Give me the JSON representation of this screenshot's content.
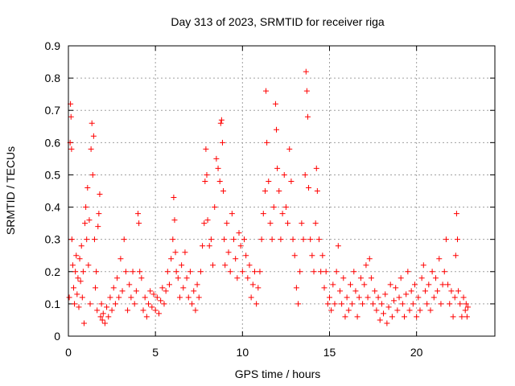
{
  "chart_data": {
    "type": "scatter",
    "title": "Day 313 of 2023, SRMTID for receiver riga",
    "xlabel": "GPS time / hours",
    "ylabel": "SRMTID / TECUs",
    "xlim": [
      0,
      24.5
    ],
    "ylim": [
      0,
      0.9
    ],
    "xticks": [
      0,
      5,
      10,
      15,
      20
    ],
    "xtick_labels": [
      "0",
      "5",
      "10",
      "15",
      "20"
    ],
    "yticks": [
      0,
      0.1,
      0.2,
      0.3,
      0.4,
      0.5,
      0.6,
      0.7,
      0.8,
      0.9
    ],
    "ytick_labels": [
      "0",
      "0.1",
      "0.2",
      "0.3",
      "0.4",
      "0.5",
      "0.6",
      "0.7",
      "0.8",
      "0.9"
    ],
    "grid": true,
    "marker": "+",
    "color": "#ff0000",
    "series": [
      {
        "name": "SRMTID",
        "points": [
          [
            0.05,
            0.12
          ],
          [
            0.1,
            0.6
          ],
          [
            0.12,
            0.72
          ],
          [
            0.15,
            0.68
          ],
          [
            0.18,
            0.58
          ],
          [
            0.2,
            0.3
          ],
          [
            0.25,
            0.22
          ],
          [
            0.3,
            0.15
          ],
          [
            0.35,
            0.1
          ],
          [
            0.4,
            0.2
          ],
          [
            0.45,
            0.25
          ],
          [
            0.5,
            0.13
          ],
          [
            0.55,
            0.18
          ],
          [
            0.6,
            0.09
          ],
          [
            0.65,
            0.24
          ],
          [
            0.7,
            0.17
          ],
          [
            0.75,
            0.28
          ],
          [
            0.8,
            0.12
          ],
          [
            0.85,
            0.2
          ],
          [
            0.9,
            0.04
          ],
          [
            0.95,
            0.35
          ],
          [
            1.0,
            0.4
          ],
          [
            1.05,
            0.3
          ],
          [
            1.1,
            0.46
          ],
          [
            1.15,
            0.22
          ],
          [
            1.2,
            0.36
          ],
          [
            1.25,
            0.1
          ],
          [
            1.3,
            0.58
          ],
          [
            1.35,
            0.66
          ],
          [
            1.4,
            0.5
          ],
          [
            1.45,
            0.62
          ],
          [
            1.5,
            0.3
          ],
          [
            1.55,
            0.15
          ],
          [
            1.6,
            0.2
          ],
          [
            1.65,
            0.08
          ],
          [
            1.7,
            0.34
          ],
          [
            1.75,
            0.38
          ],
          [
            1.8,
            0.44
          ],
          [
            1.85,
            0.06
          ],
          [
            1.9,
            0.1
          ],
          [
            1.95,
            0.05
          ],
          [
            2.0,
            0.07
          ],
          [
            2.1,
            0.04
          ],
          [
            2.2,
            0.09
          ],
          [
            2.3,
            0.06
          ],
          [
            2.4,
            0.12
          ],
          [
            2.5,
            0.08
          ],
          [
            2.6,
            0.15
          ],
          [
            2.7,
            0.1
          ],
          [
            2.8,
            0.18
          ],
          [
            2.9,
            0.12
          ],
          [
            3.0,
            0.24
          ],
          [
            3.1,
            0.14
          ],
          [
            3.2,
            0.3
          ],
          [
            3.3,
            0.2
          ],
          [
            3.4,
            0.08
          ],
          [
            3.5,
            0.16
          ],
          [
            3.6,
            0.12
          ],
          [
            3.7,
            0.2
          ],
          [
            3.8,
            0.1
          ],
          [
            3.9,
            0.14
          ],
          [
            4.0,
            0.38
          ],
          [
            4.05,
            0.35
          ],
          [
            4.1,
            0.2
          ],
          [
            4.2,
            0.18
          ],
          [
            4.3,
            0.08
          ],
          [
            4.4,
            0.12
          ],
          [
            4.5,
            0.06
          ],
          [
            4.6,
            0.1
          ],
          [
            4.7,
            0.14
          ],
          [
            4.8,
            0.09
          ],
          [
            4.9,
            0.13
          ],
          [
            5.0,
            0.08
          ],
          [
            5.1,
            0.12
          ],
          [
            5.2,
            0.07
          ],
          [
            5.3,
            0.11
          ],
          [
            5.4,
            0.15
          ],
          [
            5.5,
            0.1
          ],
          [
            5.6,
            0.14
          ],
          [
            5.7,
            0.2
          ],
          [
            5.8,
            0.16
          ],
          [
            5.9,
            0.24
          ],
          [
            6.0,
            0.3
          ],
          [
            6.05,
            0.43
          ],
          [
            6.1,
            0.36
          ],
          [
            6.15,
            0.26
          ],
          [
            6.2,
            0.2
          ],
          [
            6.3,
            0.18
          ],
          [
            6.4,
            0.12
          ],
          [
            6.5,
            0.22
          ],
          [
            6.6,
            0.15
          ],
          [
            6.7,
            0.26
          ],
          [
            6.8,
            0.18
          ],
          [
            6.9,
            0.12
          ],
          [
            7.0,
            0.2
          ],
          [
            7.1,
            0.1
          ],
          [
            7.2,
            0.14
          ],
          [
            7.3,
            0.08
          ],
          [
            7.4,
            0.16
          ],
          [
            7.5,
            0.12
          ],
          [
            7.6,
            0.2
          ],
          [
            7.7,
            0.28
          ],
          [
            7.8,
            0.35
          ],
          [
            7.85,
            0.48
          ],
          [
            7.9,
            0.58
          ],
          [
            7.95,
            0.5
          ],
          [
            8.0,
            0.36
          ],
          [
            8.1,
            0.28
          ],
          [
            8.2,
            0.3
          ],
          [
            8.3,
            0.22
          ],
          [
            8.4,
            0.4
          ],
          [
            8.5,
            0.55
          ],
          [
            8.6,
            0.52
          ],
          [
            8.7,
            0.48
          ],
          [
            8.75,
            0.66
          ],
          [
            8.8,
            0.67
          ],
          [
            8.85,
            0.6
          ],
          [
            8.9,
            0.45
          ],
          [
            8.95,
            0.3
          ],
          [
            9.0,
            0.22
          ],
          [
            9.1,
            0.35
          ],
          [
            9.2,
            0.26
          ],
          [
            9.3,
            0.2
          ],
          [
            9.4,
            0.38
          ],
          [
            9.5,
            0.3
          ],
          [
            9.6,
            0.24
          ],
          [
            9.7,
            0.18
          ],
          [
            9.8,
            0.32
          ],
          [
            9.9,
            0.28
          ],
          [
            10.0,
            0.2
          ],
          [
            10.1,
            0.3
          ],
          [
            10.2,
            0.25
          ],
          [
            10.3,
            0.18
          ],
          [
            10.4,
            0.22
          ],
          [
            10.5,
            0.12
          ],
          [
            10.6,
            0.16
          ],
          [
            10.7,
            0.2
          ],
          [
            10.8,
            0.1
          ],
          [
            10.9,
            0.15
          ],
          [
            11.0,
            0.2
          ],
          [
            11.1,
            0.3
          ],
          [
            11.2,
            0.38
          ],
          [
            11.3,
            0.45
          ],
          [
            11.35,
            0.76
          ],
          [
            11.4,
            0.6
          ],
          [
            11.5,
            0.48
          ],
          [
            11.6,
            0.35
          ],
          [
            11.7,
            0.3
          ],
          [
            11.8,
            0.4
          ],
          [
            11.9,
            0.72
          ],
          [
            11.95,
            0.64
          ],
          [
            12.0,
            0.52
          ],
          [
            12.1,
            0.45
          ],
          [
            12.2,
            0.3
          ],
          [
            12.3,
            0.38
          ],
          [
            12.4,
            0.5
          ],
          [
            12.5,
            0.4
          ],
          [
            12.6,
            0.35
          ],
          [
            12.7,
            0.58
          ],
          [
            12.8,
            0.48
          ],
          [
            12.9,
            0.3
          ],
          [
            13.0,
            0.25
          ],
          [
            13.1,
            0.15
          ],
          [
            13.2,
            0.1
          ],
          [
            13.3,
            0.2
          ],
          [
            13.4,
            0.35
          ],
          [
            13.5,
            0.3
          ],
          [
            13.6,
            0.5
          ],
          [
            13.65,
            0.82
          ],
          [
            13.7,
            0.76
          ],
          [
            13.75,
            0.68
          ],
          [
            13.8,
            0.46
          ],
          [
            13.9,
            0.3
          ],
          [
            14.0,
            0.25
          ],
          [
            14.1,
            0.2
          ],
          [
            14.2,
            0.35
          ],
          [
            14.25,
            0.52
          ],
          [
            14.3,
            0.45
          ],
          [
            14.4,
            0.3
          ],
          [
            14.5,
            0.2
          ],
          [
            14.6,
            0.25
          ],
          [
            14.7,
            0.15
          ],
          [
            14.8,
            0.2
          ],
          [
            14.9,
            0.1
          ],
          [
            15.0,
            0.12
          ],
          [
            15.1,
            0.08
          ],
          [
            15.2,
            0.16
          ],
          [
            15.3,
            0.1
          ],
          [
            15.4,
            0.2
          ],
          [
            15.5,
            0.28
          ],
          [
            15.6,
            0.14
          ],
          [
            15.7,
            0.1
          ],
          [
            15.8,
            0.18
          ],
          [
            15.9,
            0.06
          ],
          [
            16.0,
            0.12
          ],
          [
            16.1,
            0.08
          ],
          [
            16.2,
            0.16
          ],
          [
            16.3,
            0.1
          ],
          [
            16.4,
            0.2
          ],
          [
            16.5,
            0.14
          ],
          [
            16.6,
            0.06
          ],
          [
            16.7,
            0.12
          ],
          [
            16.8,
            0.18
          ],
          [
            16.9,
            0.1
          ],
          [
            17.0,
            0.16
          ],
          [
            17.1,
            0.22
          ],
          [
            17.2,
            0.12
          ],
          [
            17.3,
            0.24
          ],
          [
            17.4,
            0.18
          ],
          [
            17.5,
            0.1
          ],
          [
            17.6,
            0.14
          ],
          [
            17.7,
            0.08
          ],
          [
            17.8,
            0.12
          ],
          [
            17.9,
            0.05
          ],
          [
            18.0,
            0.1
          ],
          [
            18.1,
            0.07
          ],
          [
            18.2,
            0.13
          ],
          [
            18.3,
            0.04
          ],
          [
            18.4,
            0.09
          ],
          [
            18.5,
            0.16
          ],
          [
            18.6,
            0.06
          ],
          [
            18.7,
            0.11
          ],
          [
            18.8,
            0.15
          ],
          [
            18.9,
            0.08
          ],
          [
            19.0,
            0.12
          ],
          [
            19.1,
            0.18
          ],
          [
            19.2,
            0.1
          ],
          [
            19.3,
            0.06
          ],
          [
            19.4,
            0.13
          ],
          [
            19.5,
            0.2
          ],
          [
            19.6,
            0.08
          ],
          [
            19.7,
            0.14
          ],
          [
            19.8,
            0.1
          ],
          [
            19.9,
            0.16
          ],
          [
            20.0,
            0.06
          ],
          [
            20.1,
            0.12
          ],
          [
            20.2,
            0.08
          ],
          [
            20.3,
            0.18
          ],
          [
            20.4,
            0.22
          ],
          [
            20.5,
            0.14
          ],
          [
            20.6,
            0.1
          ],
          [
            20.7,
            0.16
          ],
          [
            20.8,
            0.08
          ],
          [
            20.9,
            0.2
          ],
          [
            21.0,
            0.12
          ],
          [
            21.1,
            0.18
          ],
          [
            21.2,
            0.14
          ],
          [
            21.3,
            0.24
          ],
          [
            21.4,
            0.1
          ],
          [
            21.5,
            0.16
          ],
          [
            21.6,
            0.2
          ],
          [
            21.7,
            0.3
          ],
          [
            21.8,
            0.16
          ],
          [
            21.9,
            0.1
          ],
          [
            22.0,
            0.14
          ],
          [
            22.1,
            0.06
          ],
          [
            22.2,
            0.12
          ],
          [
            22.25,
            0.25
          ],
          [
            22.3,
            0.38
          ],
          [
            22.35,
            0.3
          ],
          [
            22.4,
            0.14
          ],
          [
            22.5,
            0.1
          ],
          [
            22.6,
            0.06
          ],
          [
            22.7,
            0.12
          ],
          [
            22.8,
            0.08
          ],
          [
            22.85,
            0.1
          ],
          [
            22.9,
            0.06
          ],
          [
            22.95,
            0.09
          ]
        ]
      }
    ]
  }
}
